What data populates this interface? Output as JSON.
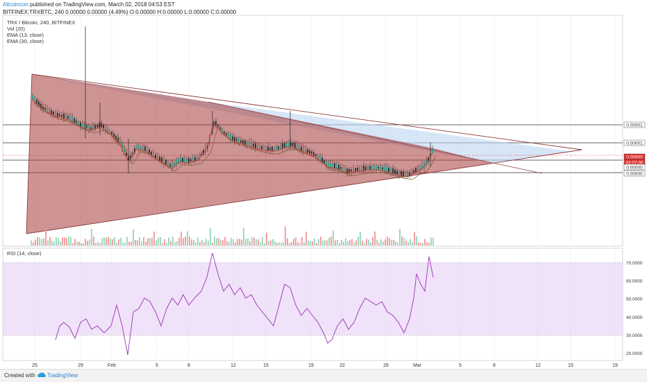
{
  "header": {
    "author": "Altcoincon",
    "published": "published on TradingView.com, March 02, 2018 04:53 EST",
    "ticker_line": "BITFINEX:TRXBTC, 240  0.00000 0.00000 (4.49%)  O:0.00000  H:0.00000  L:0.00000  C:0.00000"
  },
  "legend": {
    "symbol": "TRX / Bitcoin, 240, BITFINEX",
    "vol": "Vol (20)",
    "ema13": "EMA (13, close)",
    "ema30": "EMA (30, close)"
  },
  "rsi_label": "RSI (14, close)",
  "footer": {
    "created_with": "Created with",
    "brand": "TradingView"
  },
  "chart_data": {
    "type": "candlestick",
    "price_axis_labels": [
      "0.00001",
      "0.00001",
      "0.00000",
      "02:07:00",
      "0.00000",
      "0.00000"
    ],
    "x_tick_labels": [
      "25",
      "29",
      "Feb",
      "5",
      "8",
      "12",
      "15",
      "19",
      "22",
      "26",
      "Mar",
      "5",
      "8",
      "12",
      "15",
      "19"
    ],
    "rsi_axis_labels": [
      "70.0000",
      "60.0000",
      "50.0000",
      "40.0000",
      "30.0000",
      "20.0000"
    ],
    "rsi_range": [
      16,
      78
    ],
    "rsi_levels": [
      70,
      30
    ],
    "colors": {
      "up": "#3c9d8a",
      "down": "#333333",
      "triangle_red": "#a63a3a",
      "triangle_blue": "#bcd6f2",
      "rsi_line": "#9b30b5",
      "rsi_band": "#ead6f7",
      "current_price": "#e03030"
    }
  }
}
